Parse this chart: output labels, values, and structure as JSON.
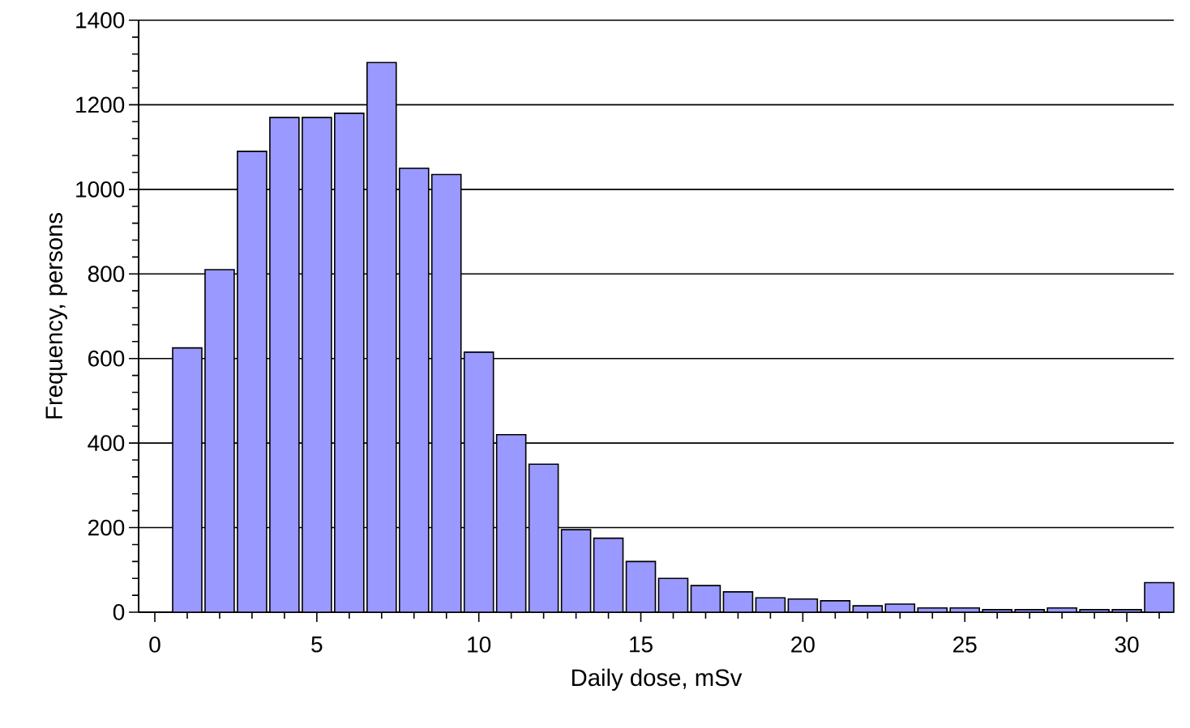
{
  "chart_data": {
    "type": "bar",
    "xlabel": "Daily dose, mSv",
    "ylabel": "Frequency, persons",
    "x": [
      1,
      2,
      3,
      4,
      5,
      6,
      7,
      8,
      9,
      10,
      11,
      12,
      13,
      14,
      15,
      16,
      17,
      18,
      19,
      20,
      21,
      22,
      23,
      24,
      25,
      26,
      27,
      28,
      29,
      30,
      31
    ],
    "values": [
      625,
      810,
      1090,
      1170,
      1170,
      1180,
      1300,
      1050,
      1035,
      615,
      420,
      350,
      195,
      175,
      120,
      80,
      63,
      48,
      34,
      31,
      27,
      15,
      19,
      10,
      10,
      6,
      6,
      10,
      6,
      6,
      70
    ],
    "color": "#9999ff",
    "xlim": [
      -0.5,
      31.45
    ],
    "ylim": [
      0,
      1400
    ],
    "xticks": [
      0,
      {
        "value": 1,
        "label": null
      },
      {
        "value": 2,
        "label": null
      },
      {
        "value": 3,
        "label": null
      },
      {
        "value": 4,
        "label": null
      },
      5,
      {
        "value": 6,
        "label": null
      },
      {
        "value": 7,
        "label": null
      },
      {
        "value": 8,
        "label": null
      },
      {
        "value": 9,
        "label": null
      },
      10,
      {
        "value": 11,
        "label": null
      },
      {
        "value": 12,
        "label": null
      },
      {
        "value": 13,
        "label": null
      },
      {
        "value": 14,
        "label": null
      },
      15,
      {
        "value": 16,
        "label": null
      },
      {
        "value": 17,
        "label": null
      },
      {
        "value": 18,
        "label": null
      },
      {
        "value": 19,
        "label": null
      },
      20,
      {
        "value": 21,
        "label": null
      },
      {
        "value": 22,
        "label": null
      },
      {
        "value": 23,
        "label": null
      },
      {
        "value": 24,
        "label": null
      },
      25,
      {
        "value": 26,
        "label": null
      },
      {
        "value": 27,
        "label": null
      },
      {
        "value": 28,
        "label": null
      },
      {
        "value": 29,
        "label": null
      },
      30,
      {
        "value": 31,
        "label": null
      }
    ],
    "yticks": [
      0,
      {
        "value": 40,
        "label": null
      },
      {
        "value": 80,
        "label": null
      },
      {
        "value": 120,
        "label": null
      },
      {
        "value": 160,
        "label": null
      },
      200,
      {
        "value": 240,
        "label": null
      },
      {
        "value": 280,
        "label": null
      },
      {
        "value": 320,
        "label": null
      },
      {
        "value": 360,
        "label": null
      },
      400,
      {
        "value": 440,
        "label": null
      },
      {
        "value": 480,
        "label": null
      },
      {
        "value": 520,
        "label": null
      },
      {
        "value": 560,
        "label": null
      },
      600,
      {
        "value": 640,
        "label": null
      },
      {
        "value": 680,
        "label": null
      },
      {
        "value": 720,
        "label": null
      },
      {
        "value": 760,
        "label": null
      },
      800,
      {
        "value": 840,
        "label": null
      },
      {
        "value": 880,
        "label": null
      },
      {
        "value": 920,
        "label": null
      },
      {
        "value": 960,
        "label": null
      },
      1000,
      {
        "value": 1040,
        "label": null
      },
      {
        "value": 1080,
        "label": null
      },
      {
        "value": 1120,
        "label": null
      },
      {
        "value": 1160,
        "label": null
      },
      1200,
      {
        "value": 1240,
        "label": null
      },
      {
        "value": 1280,
        "label": null
      },
      {
        "value": 1320,
        "label": null
      },
      {
        "value": 1360,
        "label": null
      },
      1400
    ],
    "grid": "y"
  }
}
